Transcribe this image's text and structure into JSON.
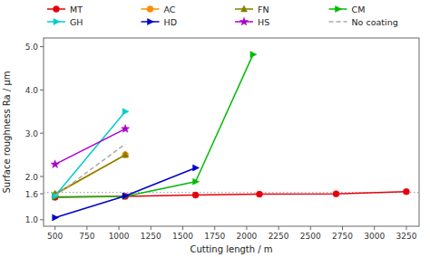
{
  "chart_data": {
    "type": "line",
    "xlabel": "Cutting length / m",
    "ylabel": "Surface roughness Ra / μm",
    "series": [
      {
        "name": "MT",
        "color": "#e8000d",
        "marker": "circle",
        "line_style": "solid",
        "x": [
          500,
          1050,
          1600,
          2100,
          2700,
          3250
        ],
        "values": [
          1.52,
          1.54,
          1.57,
          1.59,
          1.6,
          1.65
        ]
      },
      {
        "name": "AC",
        "color": "#ff8c00",
        "marker": "circle",
        "line_style": "solid",
        "x": [
          500,
          1050
        ],
        "values": [
          1.58,
          2.5
        ]
      },
      {
        "name": "FN",
        "color": "#808000",
        "marker": "triangle-up",
        "line_style": "solid",
        "x": [
          500,
          1050
        ],
        "values": [
          1.6,
          2.5
        ]
      },
      {
        "name": "CM",
        "color": "#00bb00",
        "marker": "triangle-right",
        "line_style": "solid",
        "x": [
          500,
          1050,
          1600,
          2050
        ],
        "values": [
          1.53,
          1.54,
          1.88,
          4.82
        ]
      },
      {
        "name": "GH",
        "color": "#00cccc",
        "marker": "triangle-right",
        "line_style": "solid",
        "x": [
          500,
          1050
        ],
        "values": [
          1.55,
          3.5
        ]
      },
      {
        "name": "HD",
        "color": "#0000cc",
        "marker": "triangle-right",
        "line_style": "solid",
        "x": [
          500,
          1050,
          1600
        ],
        "values": [
          1.05,
          1.55,
          2.2
        ]
      },
      {
        "name": "HS",
        "color": "#aa00cc",
        "marker": "star",
        "line_style": "solid",
        "x": [
          500,
          1050
        ],
        "values": [
          2.28,
          3.1
        ]
      },
      {
        "name": "No coating",
        "color": "#aaaaaa",
        "marker": "none",
        "line_style": "dashed",
        "x": [
          500,
          1050
        ],
        "values": [
          1.55,
          2.75
        ]
      }
    ],
    "hline": {
      "y": 1.63,
      "color": "#aaaaaa",
      "line_style": "dotted"
    },
    "xlim": [
      410,
      3350
    ],
    "ylim": [
      0.85,
      5.2
    ],
    "xticks": [
      500,
      750,
      1000,
      1250,
      1500,
      1750,
      2000,
      2250,
      2500,
      2750,
      3000,
      3250
    ],
    "yticks": [
      {
        "value": 1.0,
        "label": "1.0"
      },
      1.6,
      {
        "value": 2.0,
        "label": "2.0"
      },
      {
        "value": 3.0,
        "label": "3.0"
      },
      {
        "value": 4.0,
        "label": "4.0"
      },
      {
        "value": 5.0,
        "label": "5.0"
      }
    ],
    "grid": false,
    "legend": "top"
  }
}
